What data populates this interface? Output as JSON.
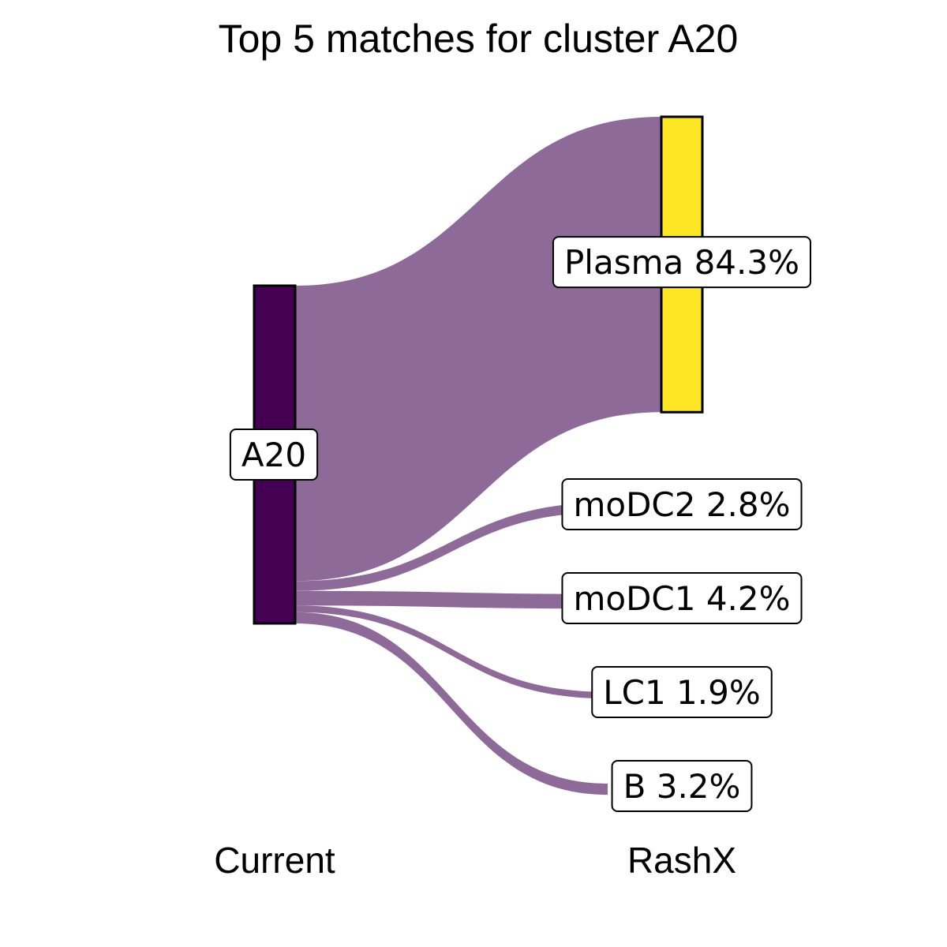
{
  "chart_data": {
    "type": "sankey",
    "title": "Top 5 matches for cluster A20",
    "axes": {
      "left": "Current",
      "right": "RashX"
    },
    "source": {
      "name": "A20",
      "label": "A20",
      "color": "#440154"
    },
    "flow_color": "#8e6a98",
    "targets": [
      {
        "name": "Plasma",
        "value": 84.3,
        "label": "Plasma 84.3%",
        "color": "#fde725"
      },
      {
        "name": "moDC2",
        "value": 2.8,
        "label": "moDC2 2.8%",
        "color": "#fde725"
      },
      {
        "name": "moDC1",
        "value": 4.2,
        "label": "moDC1 4.2%",
        "color": "#fde725"
      },
      {
        "name": "LC1",
        "value": 1.9,
        "label": "LC1 1.9%",
        "color": "#fde725"
      },
      {
        "name": "B",
        "value": 3.2,
        "label": "B 3.2%",
        "color": "#fde725"
      }
    ]
  }
}
